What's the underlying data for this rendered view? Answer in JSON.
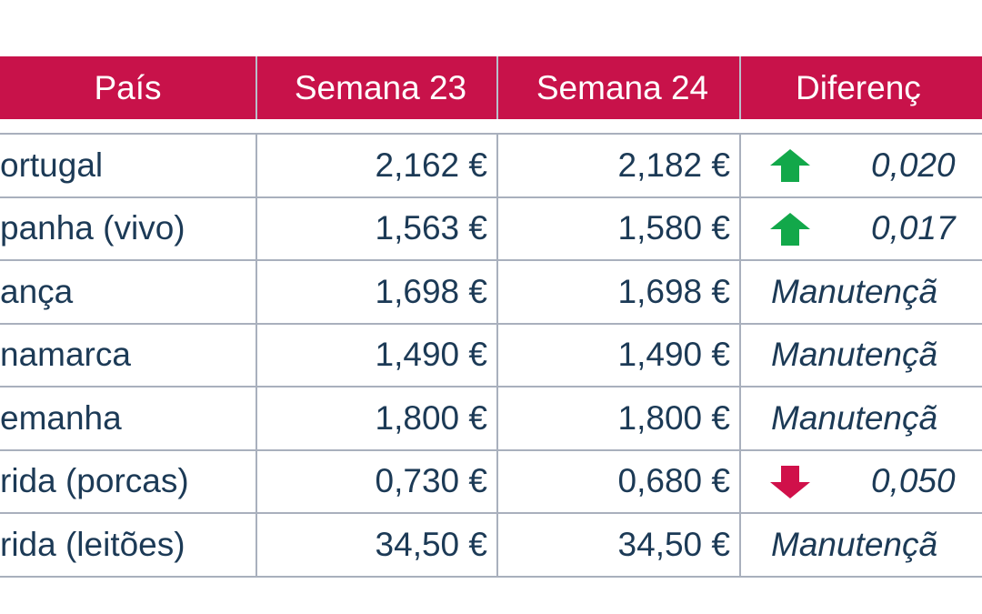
{
  "header": [
    "País",
    "Semana 23",
    "Semana 24",
    "Diferenç"
  ],
  "rows": [
    [
      "ortugal",
      "2,162 €",
      "2,182 €",
      "0,020"
    ],
    [
      "panha (vivo)",
      "1,563 €",
      "1,580 €",
      "0,017"
    ],
    [
      "ança",
      "1,698 €",
      "1,698 €",
      "Manutençã"
    ],
    [
      "namarca",
      "1,490 €",
      "1,490 €",
      "Manutençã"
    ],
    [
      "emanha",
      "1,800 €",
      "1,800 €",
      "Manutençã"
    ],
    [
      "rida (porcas)",
      "0,730 €",
      "0,680 €",
      "0,050"
    ],
    [
      "rida (leitões)",
      "34,50 €",
      "34,50 €",
      "Manutençã"
    ]
  ]
}
